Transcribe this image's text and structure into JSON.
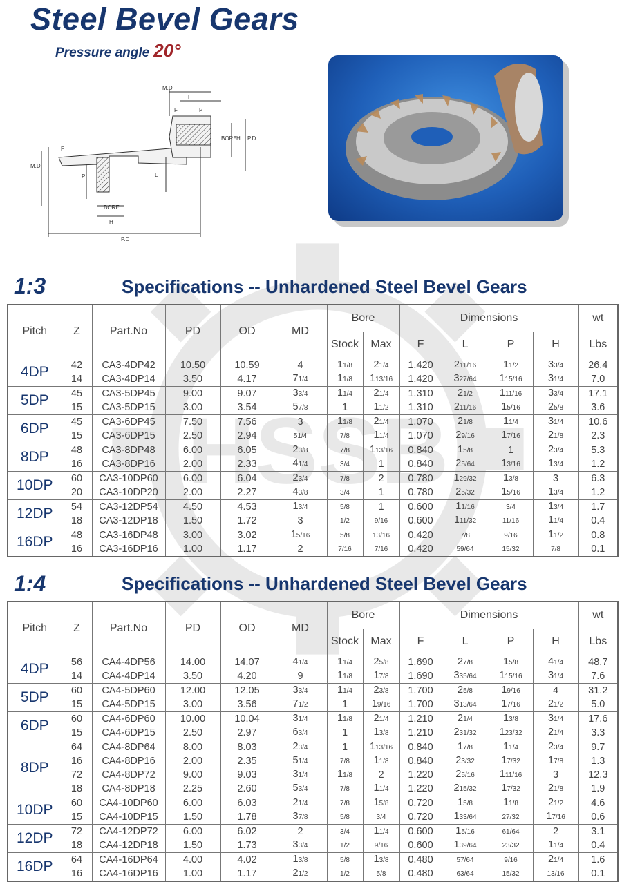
{
  "header": {
    "title": "Steel Bevel Gears",
    "subtitle": "Pressure angle",
    "pressure_angle": "20°"
  },
  "diagram": {
    "labels": [
      "M.D",
      "L",
      "F",
      "P",
      "BORE",
      "H",
      "P.D",
      "M.D",
      "F",
      "P",
      "L",
      "BORE",
      "H",
      "P.D"
    ]
  },
  "colors": {
    "brand": "#17366e",
    "accent": "#a0262a",
    "photo_bg": "#1f5fb8"
  },
  "columns": {
    "pitch": "Pitch",
    "z": "Z",
    "part": "Part.No",
    "pd": "PD",
    "od": "OD",
    "md": "MD",
    "bore": "Bore",
    "stock": "Stock",
    "max": "Max",
    "dimensions": "Dimensions",
    "f": "F",
    "l": "L",
    "p": "P",
    "h": "H",
    "wt": "wt",
    "lbs": "Lbs"
  },
  "tables": [
    {
      "ratio": "1:3",
      "title": "Specifications -- Unhardened Steel Bevel Gears",
      "groups": [
        {
          "pitch": "4DP",
          "rows": [
            [
              "42",
              "CA3-4DP42",
              "10.50",
              "10.59",
              "4",
              "1 1/8",
              "2 1/4",
              "1.420",
              "2 11/16",
              "1 1/2",
              "3 3/4",
              "26.4"
            ],
            [
              "14",
              "CA3-4DP14",
              "3.50",
              "4.17",
              "7 1/4",
              "1 1/8",
              "1 13/16",
              "1.420",
              "3 27/64",
              "1 15/16",
              "3 1/4",
              "7.0"
            ]
          ]
        },
        {
          "pitch": "5DP",
          "rows": [
            [
              "45",
              "CA3-5DP45",
              "9.00",
              "9.07",
              "3 3/4",
              "1 1/4",
              "2 1/4",
              "1.310",
              "2 1/2",
              "1 11/16",
              "3 3/4",
              "17.1"
            ],
            [
              "15",
              "CA3-5DP15",
              "3.00",
              "3.54",
              "5 7/8",
              "1",
              "1 1/2",
              "1.310",
              "2 11/16",
              "1 5/16",
              "2 5/8",
              "3.6"
            ]
          ]
        },
        {
          "pitch": "6DP",
          "rows": [
            [
              "45",
              "CA3-6DP45",
              "7.50",
              "7.56",
              "3",
              "1 1/8",
              "2 1/4",
              "1.070",
              "2 1/8",
              "1 1/4",
              "3 1/4",
              "10.6"
            ],
            [
              "15",
              "CA3-6DP15",
              "2.50",
              "2.94",
              "51/4",
              "7/8",
              "1 1/4",
              "1.070",
              "2 9/16",
              "1 7/16",
              "2 1/8",
              "2.3"
            ]
          ]
        },
        {
          "pitch": "8DP",
          "rows": [
            [
              "48",
              "CA3-8DP48",
              "6.00",
              "6.05",
              "2 3/8",
              "7/8",
              "1 13/16",
              "0.840",
              "1 5/8",
              "1",
              "2 3/4",
              "5.3"
            ],
            [
              "16",
              "CA3-8DP16",
              "2.00",
              "2.33",
              "4 1/4",
              "3/4",
              "1",
              "0.840",
              "2 5/64",
              "1 3/16",
              "1 3/4",
              "1.2"
            ]
          ]
        },
        {
          "pitch": "10DP",
          "rows": [
            [
              "60",
              "CA3-10DP60",
              "6.00",
              "6.04",
              "2 3/4",
              "7/8",
              "2",
              "0.780",
              "1 29/32",
              "1 3/8",
              "3",
              "6.3"
            ],
            [
              "20",
              "CA3-10DP20",
              "2.00",
              "2.27",
              "4 3/8",
              "3/4",
              "1",
              "0.780",
              "2 5/32",
              "1 5/16",
              "1 3/4",
              "1.2"
            ]
          ]
        },
        {
          "pitch": "12DP",
          "rows": [
            [
              "54",
              "CA3-12DP54",
              "4.50",
              "4.53",
              "1 3/4",
              "5/8",
              "1",
              "0.600",
              "1 1/16",
              "3/4",
              "1 3/4",
              "1.7"
            ],
            [
              "18",
              "CA3-12DP18",
              "1.50",
              "1.72",
              "3",
              "1/2",
              "9/16",
              "0.600",
              "1 11/32",
              "11/16",
              "1 1/4",
              "0.4"
            ]
          ]
        },
        {
          "pitch": "16DP",
          "rows": [
            [
              "48",
              "CA3-16DP48",
              "3.00",
              "3.02",
              "1 5/16",
              "5/8",
              "13/16",
              "0.420",
              "7/8",
              "9/16",
              "1 1/2",
              "0.8"
            ],
            [
              "16",
              "CA3-16DP16",
              "1.00",
              "1.17",
              "2",
              "7/16",
              "7/16",
              "0.420",
              "59/64",
              "15/32",
              "7/8",
              "0.1"
            ]
          ]
        }
      ]
    },
    {
      "ratio": "1:4",
      "title": "Specifications -- Unhardened Steel Bevel Gears",
      "groups": [
        {
          "pitch": "4DP",
          "rows": [
            [
              "56",
              "CA4-4DP56",
              "14.00",
              "14.07",
              "4 1/4",
              "1 1/4",
              "2 5/8",
              "1.690",
              "2 7/8",
              "1 5/8",
              "4 1/4",
              "48.7"
            ],
            [
              "14",
              "CA4-4DP14",
              "3.50",
              "4.20",
              "9",
              "1 1/8",
              "1 7/8",
              "1.690",
              "3 35/64",
              "1 15/16",
              "3 1/4",
              "7.6"
            ]
          ]
        },
        {
          "pitch": "5DP",
          "rows": [
            [
              "60",
              "CA4-5DP60",
              "12.00",
              "12.05",
              "3 3/4",
              "1 1/4",
              "2 3/8",
              "1.700",
              "2 5/8",
              "1 9/16",
              "4",
              "31.2"
            ],
            [
              "15",
              "CA4-5DP15",
              "3.00",
              "3.56",
              "7 1/2",
              "1",
              "1 9/16",
              "1.700",
              "3 13/64",
              "1 7/16",
              "2 1/2",
              "5.0"
            ]
          ]
        },
        {
          "pitch": "6DP",
          "rows": [
            [
              "60",
              "CA4-6DP60",
              "10.00",
              "10.04",
              "3 1/4",
              "1 1/8",
              "2 1/4",
              "1.210",
              "2 1/4",
              "1 3/8",
              "3 1/4",
              "17.6"
            ],
            [
              "15",
              "CA4-6DP15",
              "2.50",
              "2.97",
              "6 3/4",
              "1",
              "1 3/8",
              "1.210",
              "2 31/32",
              "1 23/32",
              "2 1/4",
              "3.3"
            ]
          ]
        },
        {
          "pitch": "8DP",
          "rows": [
            [
              "64",
              "CA4-8DP64",
              "8.00",
              "8.03",
              "2 3/4",
              "1",
              "1 13/16",
              "0.840",
              "1 7/8",
              "1 1/4",
              "2 3/4",
              "9.7"
            ],
            [
              "16",
              "CA4-8DP16",
              "2.00",
              "2.35",
              "5 1/4",
              "7/8",
              "1 1/8",
              "0.840",
              "2 3/32",
              "1 7/32",
              "1 7/8",
              "1.3"
            ],
            [
              "72",
              "CA4-8DP72",
              "9.00",
              "9.03",
              "3 1/4",
              "1 1/8",
              "2",
              "1.220",
              "2 5/16",
              "1 11/16",
              "3",
              "12.3"
            ],
            [
              "18",
              "CA4-8DP18",
              "2.25",
              "2.60",
              "5 3/4",
              "7/8",
              "1 1/4",
              "1.220",
              "2 15/32",
              "1 7/32",
              "2 1/8",
              "1.9"
            ]
          ]
        },
        {
          "pitch": "10DP",
          "rows": [
            [
              "60",
              "CA4-10DP60",
              "6.00",
              "6.03",
              "2 1/4",
              "7/8",
              "1 5/8",
              "0.720",
              "1 5/8",
              "1 1/8",
              "2 1/2",
              "4.6"
            ],
            [
              "15",
              "CA4-10DP15",
              "1.50",
              "1.78",
              "3 7/8",
              "5/8",
              "3/4",
              "0.720",
              "1 33/64",
              "27/32",
              "1 7/16",
              "0.6"
            ]
          ]
        },
        {
          "pitch": "12DP",
          "rows": [
            [
              "72",
              "CA4-12DP72",
              "6.00",
              "6.02",
              "2",
              "3/4",
              "1 1/4",
              "0.600",
              "1 5/16",
              "61/64",
              "2",
              "3.1"
            ],
            [
              "18",
              "CA4-12DP18",
              "1.50",
              "1.73",
              "3 3/4",
              "1/2",
              "9/16",
              "0.600",
              "1 39/64",
              "23/32",
              "1 1/4",
              "0.4"
            ]
          ]
        },
        {
          "pitch": "16DP",
          "rows": [
            [
              "64",
              "CA4-16DP64",
              "4.00",
              "4.02",
              "1 3/8",
              "5/8",
              "1 3/8",
              "0.480",
              "57/64",
              "9/16",
              "2 1/4",
              "1.6"
            ],
            [
              "16",
              "CA4-16DP16",
              "1.00",
              "1.17",
              "2 1/2",
              "1/2",
              "5/8",
              "0.480",
              "63/64",
              "15/32",
              "13/16",
              "0.1"
            ]
          ]
        }
      ]
    }
  ]
}
